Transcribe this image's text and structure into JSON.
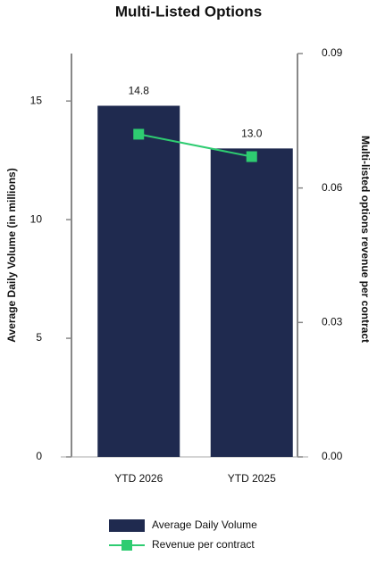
{
  "chart_data": {
    "type": "bar",
    "title": "Multi-Listed Options",
    "categories": [
      "YTD 2026",
      "YTD 2025"
    ],
    "series": [
      {
        "name": "Average Daily Volume",
        "type": "bar",
        "color": "#1f2a4f",
        "values": [
          14.8,
          13.0
        ],
        "value_labels": [
          "14.8",
          "13.0"
        ]
      },
      {
        "name": "Revenue per contract",
        "type": "line",
        "axis": "y2",
        "color": "#2ecc71",
        "values": [
          0.072,
          0.067
        ]
      }
    ],
    "y_label": "Average Daily Volume (in millions)",
    "y2_label": "Multi-listed options revenue per contract",
    "ylim": [
      0,
      17
    ],
    "yticks": [
      0,
      5,
      10,
      15
    ],
    "y2lim": [
      0,
      0.09
    ],
    "y2ticks": [
      {
        "value": 0,
        "label": "0.00"
      },
      0.03,
      0.06,
      0.09
    ],
    "legend": "bottom",
    "grid": false
  }
}
